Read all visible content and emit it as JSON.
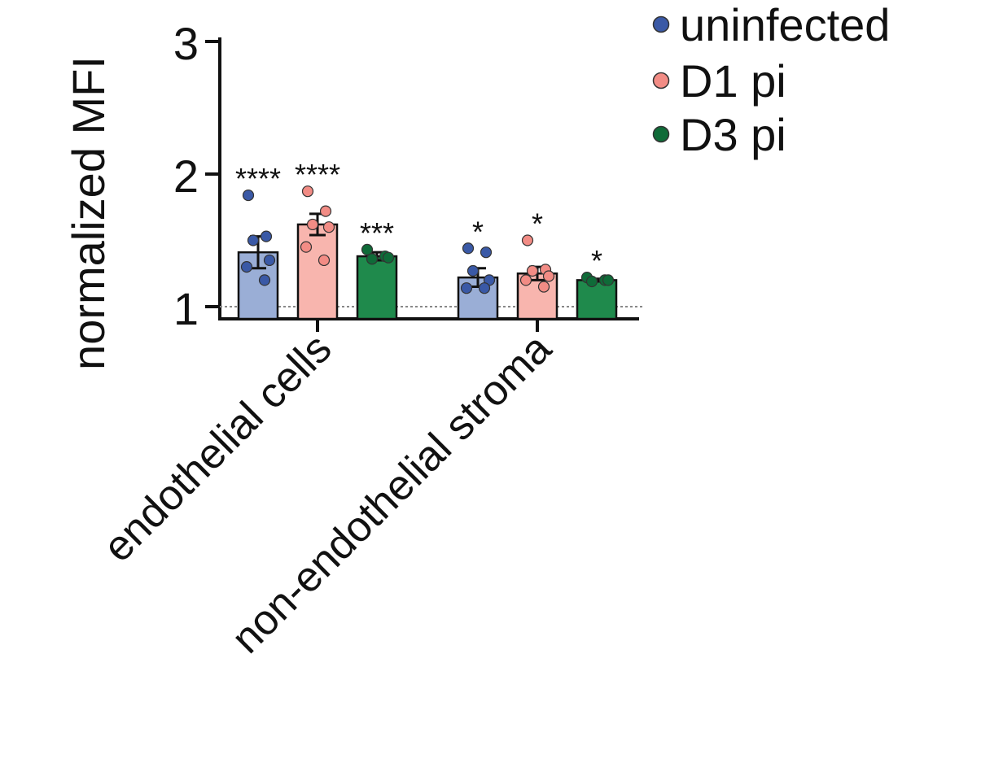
{
  "chart_data": {
    "type": "bar",
    "title": "",
    "xlabel": "",
    "ylabel": "normalized MFI",
    "ylim": [
      0.9,
      3.0
    ],
    "yticks": [
      "1",
      "2",
      "3"
    ],
    "ytick_values": [
      1,
      2,
      3
    ],
    "reference_line": 1,
    "grid": false,
    "legend_position": "top-right",
    "categories": [
      "endothelial cells",
      "non-endothelial stroma"
    ],
    "series": [
      {
        "name": "uninfected",
        "color": "#9aaed6",
        "marker_color": "#3a59a6",
        "values": [
          1.41,
          1.22
        ],
        "sem": [
          0.12,
          0.07
        ],
        "points": [
          [
            1.84,
            1.53,
            1.5,
            1.35,
            1.3,
            1.2
          ],
          [
            1.44,
            1.41,
            1.27,
            1.2,
            1.14,
            1.14
          ]
        ],
        "significance": [
          "****",
          "*"
        ]
      },
      {
        "name": "D1 pi",
        "color": "#f8b5ae",
        "marker_color": "#f28c85",
        "values": [
          1.62,
          1.25
        ],
        "sem": [
          0.08,
          0.05
        ],
        "points": [
          [
            1.87,
            1.72,
            1.62,
            1.6,
            1.45,
            1.35
          ],
          [
            1.5,
            1.28,
            1.27,
            1.23,
            1.2,
            1.15
          ]
        ],
        "significance": [
          "****",
          "*"
        ]
      },
      {
        "name": "D3 pi",
        "color": "#1f8a4c",
        "marker_color": "#0f6b38",
        "values": [
          1.38,
          1.2
        ],
        "sem": [
          0.03,
          0.01
        ],
        "points": [
          [
            1.43,
            1.38,
            1.36,
            1.37
          ],
          [
            1.22,
            1.2,
            1.19,
            1.2
          ]
        ],
        "significance": [
          "***",
          "*"
        ]
      }
    ]
  }
}
